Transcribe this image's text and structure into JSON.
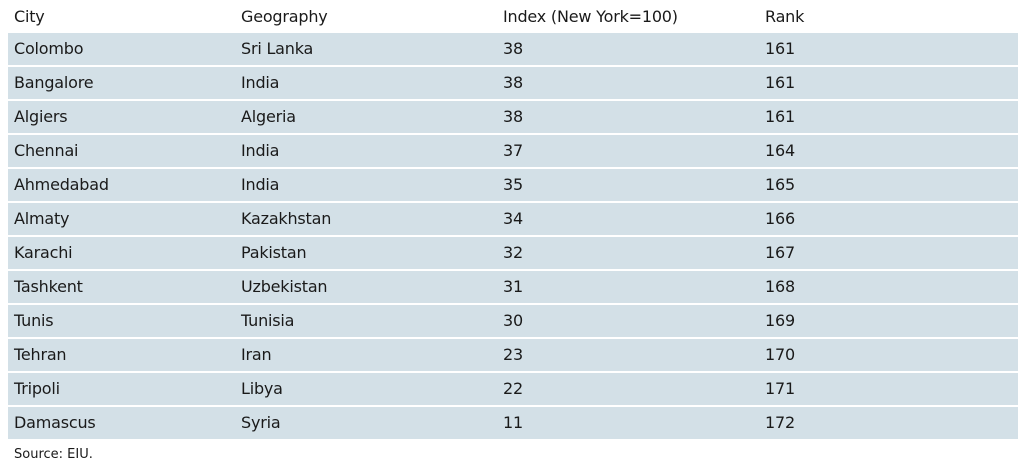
{
  "table": {
    "columns": [
      "City",
      "Geography",
      "Index (New York=100)",
      "Rank"
    ],
    "rows": [
      [
        "Colombo",
        "Sri Lanka",
        38,
        161
      ],
      [
        "Bangalore",
        "India",
        38,
        161
      ],
      [
        "Algiers",
        "Algeria",
        38,
        161
      ],
      [
        "Chennai",
        "India",
        37,
        164
      ],
      [
        "Ahmedabad",
        "India",
        35,
        165
      ],
      [
        "Almaty",
        "Kazakhstan",
        34,
        166
      ],
      [
        "Karachi",
        "Pakistan",
        32,
        167
      ],
      [
        "Tashkent",
        "Uzbekistan",
        31,
        168
      ],
      [
        "Tunis",
        "Tunisia",
        30,
        169
      ],
      [
        "Tehran",
        "Iran",
        23,
        170
      ],
      [
        "Tripoli",
        "Libya",
        22,
        171
      ],
      [
        "Damascus",
        "Syria",
        11,
        172
      ]
    ]
  },
  "source": "Source: EIU."
}
